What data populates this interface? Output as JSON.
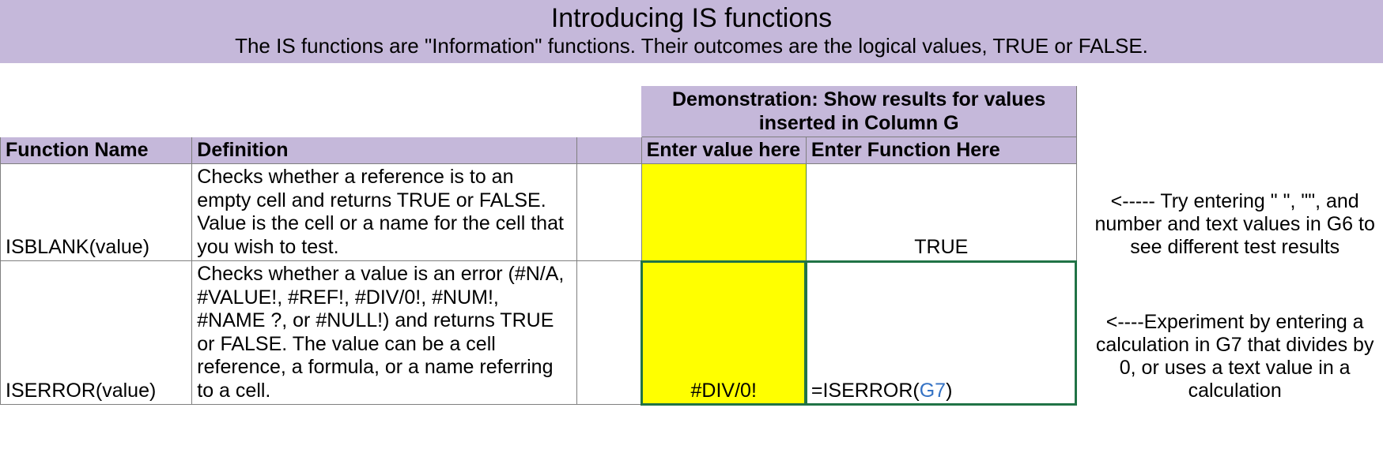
{
  "colors": {
    "header_bg": "#c5b8da",
    "highlight_bg": "#ffff00",
    "grid_border": "#7f7f7f",
    "selection_border": "#217346",
    "cell_ref_color": "#3472c4",
    "text": "#000000",
    "page_bg": "#ffffff"
  },
  "title": "Introducing IS functions",
  "subtitle": "The IS functions are \"Information\" functions. Their outcomes are the logical values, TRUE or FALSE.",
  "demo_header": "Demonstration: Show results for values inserted in Column G",
  "columns": {
    "function_name": "Function Name",
    "definition": "Definition",
    "enter_value": "Enter value here",
    "enter_function": "Enter Function Here"
  },
  "rows": [
    {
      "name": "ISBLANK(value)",
      "definition": "Checks whether a reference is to an empty cell and returns TRUE or FALSE. Value is the cell or a name for the cell that you wish to test.",
      "entered_value": "",
      "result_display": "TRUE",
      "result_is_formula": false,
      "note": "<----- Try entering \" \", \"\", and number and text values in G6 to see different test results"
    },
    {
      "name": "ISERROR(value)",
      "definition": "Checks whether a value is an error (#N/A, #VALUE!, #REF!, #DIV/0!, #NUM!, #NAME ?, or #NULL!) and returns TRUE or FALSE. The value can be a cell reference, a formula, or a name referring to a cell.",
      "entered_value": "#DIV/0!",
      "result_display": "=ISERROR(G7)",
      "formula_prefix": "=ISERROR(",
      "formula_ref": "G7",
      "formula_suffix": ")",
      "result_is_formula": true,
      "note": "<----Experiment by entering a calculation in G7 that divides by 0, or uses a text value in a calculation"
    }
  ]
}
